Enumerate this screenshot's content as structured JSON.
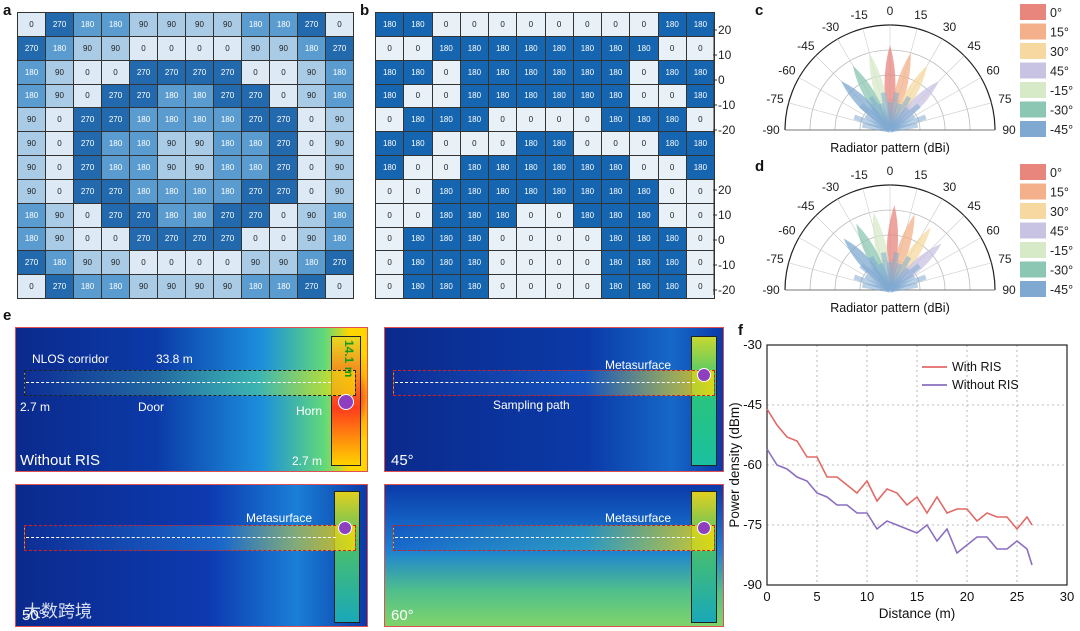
{
  "panels": {
    "a": "a",
    "b": "b",
    "c": "c",
    "d": "d",
    "e": "e",
    "f": "f"
  },
  "grid_a": [
    [
      "0",
      "270",
      "180",
      "180",
      "90",
      "90",
      "90",
      "90",
      "180",
      "180",
      "270",
      "0"
    ],
    [
      "270",
      "180",
      "90",
      "90",
      "0",
      "0",
      "0",
      "0",
      "90",
      "90",
      "180",
      "270"
    ],
    [
      "180",
      "90",
      "0",
      "0",
      "270",
      "270",
      "270",
      "270",
      "0",
      "0",
      "90",
      "180"
    ],
    [
      "180",
      "90",
      "0",
      "270",
      "270",
      "180",
      "180",
      "270",
      "270",
      "0",
      "90",
      "180"
    ],
    [
      "90",
      "0",
      "270",
      "270",
      "180",
      "180",
      "180",
      "180",
      "270",
      "270",
      "0",
      "90"
    ],
    [
      "90",
      "0",
      "270",
      "180",
      "180",
      "90",
      "90",
      "180",
      "180",
      "270",
      "0",
      "90"
    ],
    [
      "90",
      "0",
      "270",
      "180",
      "180",
      "90",
      "90",
      "180",
      "180",
      "270",
      "0",
      "90"
    ],
    [
      "90",
      "0",
      "270",
      "270",
      "180",
      "180",
      "180",
      "180",
      "270",
      "270",
      "0",
      "90"
    ],
    [
      "180",
      "90",
      "0",
      "270",
      "270",
      "180",
      "180",
      "270",
      "270",
      "0",
      "90",
      "180"
    ],
    [
      "180",
      "90",
      "0",
      "0",
      "270",
      "270",
      "270",
      "270",
      "0",
      "0",
      "90",
      "180"
    ],
    [
      "270",
      "180",
      "90",
      "90",
      "0",
      "0",
      "0",
      "0",
      "90",
      "90",
      "180",
      "270"
    ],
    [
      "0",
      "270",
      "180",
      "180",
      "90",
      "90",
      "90",
      "90",
      "180",
      "180",
      "270",
      "0"
    ]
  ],
  "grid_b": [
    [
      "180",
      "180",
      "0",
      "0",
      "0",
      "0",
      "0",
      "0",
      "0",
      "0",
      "180",
      "180"
    ],
    [
      "0",
      "0",
      "180",
      "180",
      "180",
      "180",
      "180",
      "180",
      "180",
      "180",
      "0",
      "0"
    ],
    [
      "180",
      "180",
      "0",
      "180",
      "180",
      "180",
      "180",
      "180",
      "180",
      "0",
      "180",
      "180"
    ],
    [
      "180",
      "0",
      "0",
      "180",
      "180",
      "180",
      "180",
      "180",
      "180",
      "0",
      "0",
      "180"
    ],
    [
      "0",
      "180",
      "180",
      "180",
      "0",
      "0",
      "0",
      "0",
      "180",
      "180",
      "180",
      "0"
    ],
    [
      "180",
      "180",
      "0",
      "0",
      "0",
      "180",
      "180",
      "0",
      "0",
      "0",
      "180",
      "180"
    ],
    [
      "180",
      "0",
      "0",
      "180",
      "180",
      "180",
      "180",
      "180",
      "180",
      "0",
      "0",
      "180"
    ],
    [
      "0",
      "0",
      "180",
      "180",
      "180",
      "180",
      "180",
      "180",
      "180",
      "180",
      "0",
      "0"
    ],
    [
      "0",
      "0",
      "180",
      "180",
      "180",
      "0",
      "0",
      "180",
      "180",
      "180",
      "0",
      "0"
    ],
    [
      "0",
      "180",
      "180",
      "180",
      "0",
      "0",
      "0",
      "0",
      "180",
      "180",
      "180",
      "0"
    ],
    [
      "0",
      "180",
      "180",
      "180",
      "0",
      "0",
      "0",
      "0",
      "180",
      "180",
      "180",
      "0"
    ],
    [
      "0",
      "180",
      "180",
      "180",
      "0",
      "0",
      "0",
      "0",
      "180",
      "180",
      "180",
      "0"
    ]
  ],
  "colors": {
    "p0": "#ddeaf6",
    "p90": "#a9cbe5",
    "p180": "#5a9ccf",
    "p270": "#2269ad",
    "b0": "#e8f0f8",
    "b180": "#1565b0"
  },
  "polar": {
    "angle_ticks": [
      "-90",
      "-75",
      "-60",
      "-45",
      "-30",
      "-15",
      "0",
      "15",
      "30",
      "45",
      "60",
      "75",
      "90"
    ],
    "radial_ticks": [
      "20",
      "10",
      "0",
      "-10",
      "-20"
    ],
    "xlabel": "Radiator pattern (dBi)",
    "legend": [
      {
        "label": "0°",
        "color": "#e8857d"
      },
      {
        "label": "15°",
        "color": "#f3b08a"
      },
      {
        "label": "30°",
        "color": "#f6d8a0"
      },
      {
        "label": "45°",
        "color": "#c9c3e3"
      },
      {
        "label": "-15°",
        "color": "#d6eac8"
      },
      {
        "label": "-30°",
        "color": "#8cc7b4"
      },
      {
        "label": "-45°",
        "color": "#7fa9d1"
      }
    ]
  },
  "sims": {
    "labels": [
      "Without RIS",
      "45°",
      "50°",
      "60°"
    ],
    "nlos": "NLOS corridor",
    "len": "33.8 m",
    "vlen": "14.1 m",
    "w1": "2.7 m",
    "w2": "2.7 m",
    "door": "Door",
    "horn": "Horn",
    "meta": "Metasurface",
    "sampling": "Sampling path"
  },
  "watermark": "大数跨境",
  "chart_data": {
    "type": "line",
    "xlabel": "Distance (m)",
    "ylabel": "Power density (dBm)",
    "xlim": [
      0,
      30
    ],
    "ylim": [
      -90,
      -30
    ],
    "xticks": [
      "0",
      "5",
      "10",
      "15",
      "20",
      "25",
      "30"
    ],
    "yticks": [
      "-30",
      "-45",
      "-60",
      "-75",
      "-90"
    ],
    "grid": true,
    "legend_position": "top-right",
    "series": [
      {
        "name": "With RIS",
        "color": "#e06a66",
        "x": [
          0,
          1,
          2,
          3,
          4,
          5,
          6,
          7,
          8,
          9,
          10,
          11,
          12,
          13,
          14,
          15,
          16,
          17,
          18,
          19,
          20,
          21,
          22,
          23,
          24,
          25,
          26,
          26.5
        ],
        "y": [
          -46,
          -50,
          -53,
          -54,
          -58,
          -58,
          -63,
          -63,
          -65,
          -67,
          -64,
          -69,
          -66,
          -67,
          -70,
          -68,
          -72,
          -68,
          -72,
          -71,
          -71,
          -74,
          -72,
          -73,
          -73,
          -76,
          -73,
          -75
        ]
      },
      {
        "name": "Without RIS",
        "color": "#8a6fc0",
        "x": [
          0,
          1,
          2,
          3,
          4,
          5,
          6,
          7,
          8,
          9,
          10,
          11,
          12,
          13,
          14,
          15,
          16,
          17,
          18,
          19,
          20,
          21,
          22,
          23,
          24,
          25,
          26,
          26.5
        ],
        "y": [
          -56,
          -60,
          -61,
          -63,
          -64,
          -67,
          -68,
          -70,
          -70,
          -72,
          -72,
          -76,
          -74,
          -75,
          -76,
          -77,
          -75,
          -79,
          -76,
          -82,
          -80,
          -78,
          -78,
          -81,
          -81,
          -79,
          -81,
          -85
        ]
      }
    ]
  }
}
